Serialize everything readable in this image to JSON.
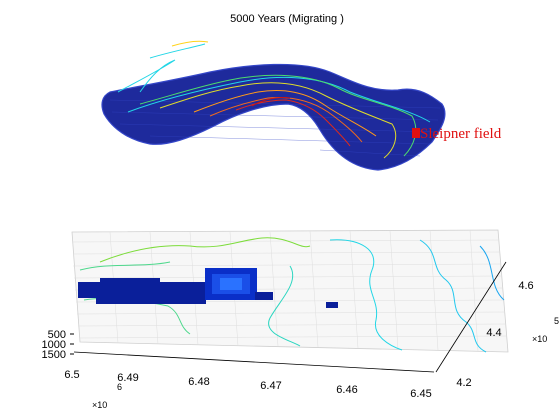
{
  "figure": {
    "title": "5000 Years (Migrating )",
    "annotation": "Sleipner field",
    "colors": {
      "surface": "#1e2a9c",
      "surface_edge": "#3446c8",
      "plume_core": "#1a4fe8",
      "plume_dark": "#0a1f9a",
      "grid": "#d9d9d9",
      "annotation": "#e01010"
    }
  },
  "chart_data": [
    {
      "type": "surface",
      "panel": "top",
      "title": "5000 Years (Migrating )",
      "annotations": [
        "Sleipner field"
      ],
      "contour_levels": [
        "cyan",
        "green",
        "yellow",
        "orange",
        "red"
      ]
    },
    {
      "type": "surface",
      "panel": "bottom",
      "x_ticks": [
        "6.5",
        "6.49",
        "6.48",
        "6.47",
        "6.46",
        "6.45"
      ],
      "x_exponent": "×10",
      "x_exponent_power": "6",
      "y_ticks": [
        "4.2",
        "4.4",
        "4.6"
      ],
      "y_exponent": "×10",
      "y_exponent_power": "5",
      "z_ticks": [
        "500",
        "1000",
        "1500"
      ]
    }
  ]
}
